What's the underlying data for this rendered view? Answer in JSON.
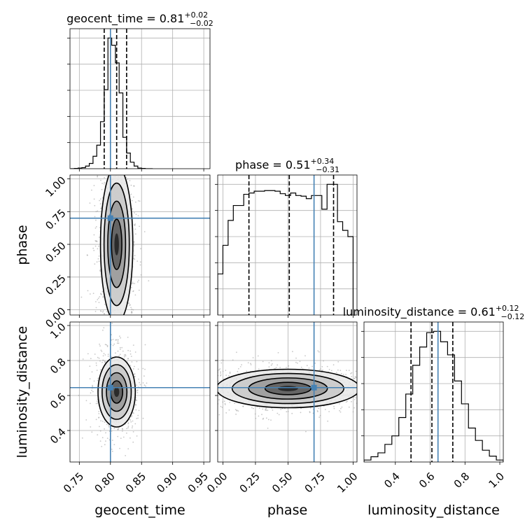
{
  "chart_data": {
    "type": "corner",
    "parameters": [
      "geocent_time",
      "phase",
      "luminosity_distance"
    ],
    "truths": {
      "geocent_time": 0.8,
      "phase": 0.7,
      "luminosity_distance": 0.645
    },
    "truth_color": "#4682b4",
    "grid": true,
    "axes": {
      "geocent_time": {
        "label": "geocent_time",
        "range": [
          0.735,
          0.96
        ],
        "ticks": [
          0.75,
          0.8,
          0.85,
          0.9,
          0.95
        ],
        "tick_labels": [
          "0.75",
          "0.80",
          "0.85",
          "0.90",
          "0.95"
        ]
      },
      "phase": {
        "label": "phase",
        "range": [
          -0.04,
          1.03
        ],
        "ticks": [
          0.0,
          0.25,
          0.5,
          0.75,
          1.0
        ],
        "tick_labels": [
          "0.00",
          "0.25",
          "0.50",
          "0.75",
          "1.00"
        ]
      },
      "luminosity_distance": {
        "label": "luminosity_distance",
        "range": [
          0.22,
          1.02
        ],
        "ticks": [
          0.4,
          0.6,
          0.8,
          1.0
        ],
        "tick_labels": [
          "0.4",
          "0.6",
          "0.8",
          "1.0"
        ]
      }
    },
    "marginals": [
      {
        "param": "geocent_time",
        "title_main": "geocent_time = 0.81",
        "title_sup": "+0.02",
        "title_sub": "−0.02",
        "quantiles": [
          0.79,
          0.81,
          0.826
        ],
        "bin_edges": [
          0.736,
          0.742,
          0.748,
          0.754,
          0.76,
          0.766,
          0.772,
          0.778,
          0.784,
          0.79,
          0.796,
          0.802,
          0.808,
          0.814,
          0.82,
          0.826,
          0.832,
          0.838,
          0.844,
          0.85,
          0.856,
          0.862,
          0.868
        ],
        "counts": [
          0,
          2,
          5,
          8,
          20,
          40,
          95,
          180,
          360,
          605,
          1000,
          945,
          810,
          580,
          240,
          120,
          50,
          20,
          5,
          2,
          0,
          0
        ]
      },
      {
        "param": "phase",
        "title_main": "phase = 0.51",
        "title_sup": "+0.34",
        "title_sub": "−0.31",
        "quantiles": [
          0.2,
          0.51,
          0.85
        ],
        "bin_edges": [
          -0.04,
          0.0,
          0.04,
          0.08,
          0.12,
          0.16,
          0.2,
          0.24,
          0.28,
          0.32,
          0.36,
          0.4,
          0.44,
          0.48,
          0.52,
          0.56,
          0.6,
          0.64,
          0.68,
          0.72,
          0.76,
          0.8,
          0.84,
          0.88,
          0.92,
          0.96,
          1.0
        ],
        "counts": [
          330,
          560,
          760,
          880,
          880,
          970,
          980,
          995,
          995,
          1000,
          1000,
          995,
          975,
          960,
          980,
          960,
          955,
          935,
          960,
          960,
          850,
          1050,
          1050,
          750,
          680,
          630
        ]
      },
      {
        "param": "luminosity_distance",
        "title_main": "luminosity_distance = 0.61",
        "title_sup": "+0.12",
        "title_sub": "−0.12",
        "quantiles": [
          0.49,
          0.61,
          0.73
        ],
        "bin_edges": [
          0.22,
          0.26,
          0.3,
          0.34,
          0.38,
          0.42,
          0.46,
          0.5,
          0.54,
          0.58,
          0.62,
          0.66,
          0.7,
          0.74,
          0.78,
          0.82,
          0.86,
          0.9,
          0.94,
          0.98,
          1.02
        ],
        "counts": [
          15,
          40,
          70,
          135,
          200,
          340,
          520,
          740,
          880,
          990,
          1000,
          920,
          820,
          620,
          445,
          260,
          165,
          90,
          45,
          15
        ]
      }
    ],
    "joint": [
      {
        "x": "geocent_time",
        "y": "phase",
        "mean": [
          0.81,
          0.5
        ],
        "sigma": [
          0.013,
          0.28
        ],
        "spread": [
          0.026,
          0.6
        ],
        "points": 950
      },
      {
        "x": "geocent_time",
        "y": "luminosity_distance",
        "mean": [
          0.81,
          0.62
        ],
        "sigma": [
          0.013,
          0.1
        ],
        "spread": [
          0.03,
          0.2
        ],
        "points": 900
      },
      {
        "x": "phase",
        "y": "luminosity_distance",
        "mean": [
          0.5,
          0.64
        ],
        "sigma": [
          0.3,
          0.055
        ],
        "spread": [
          0.55,
          0.11
        ],
        "points": 1200
      }
    ]
  }
}
